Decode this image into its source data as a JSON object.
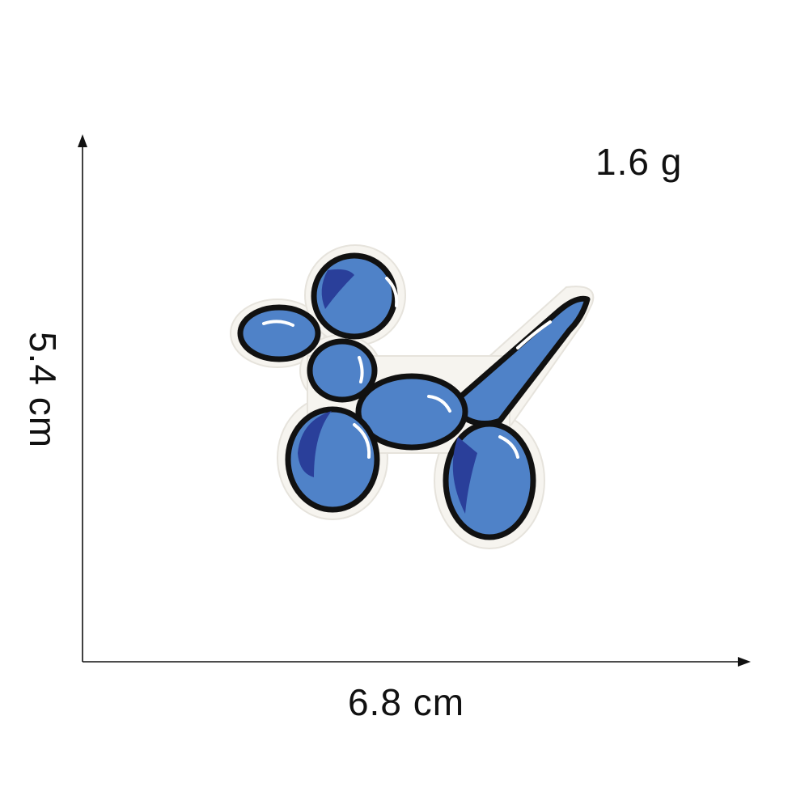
{
  "measurements": {
    "weight": "1.6 g",
    "height": "5.4 cm",
    "width": "6.8 cm"
  },
  "product": {
    "icon": "balloon-dog-patch-icon",
    "colors": {
      "balloon_blue": "#4f82c8",
      "balloon_shadow": "#2a3f9a",
      "outline": "#111111",
      "felt_border": "#f6f4ef",
      "highlight": "#ffffff"
    }
  }
}
